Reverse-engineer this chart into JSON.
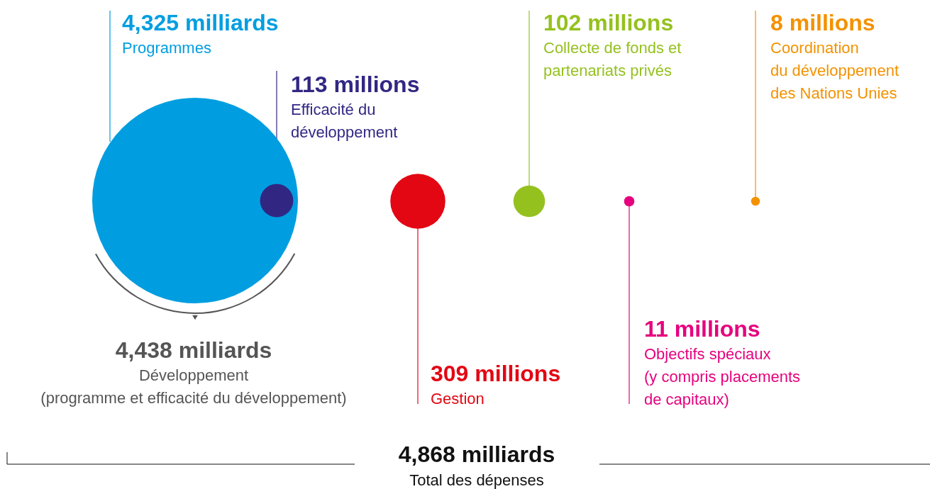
{
  "chart_data": {
    "type": "other",
    "categories": [
      "Programmes",
      "Efficacité du\ndéveloppement",
      "Gestion",
      "Collecte de fonds et\npartenariats privés",
      "Objectifs spéciaux\n(y compris placements\nde capitaux)",
      "Coordination\ndu développement\ndes Nations Unies"
    ],
    "values": [
      4325,
      113,
      309,
      102,
      11,
      8
    ],
    "value_labels": [
      "4,325 milliards",
      "113 millions",
      "309 millions",
      "102 millions",
      "11 millions",
      "8 millions"
    ],
    "colors": [
      "#009ee0",
      "#312783",
      "#e30613",
      "#95c11f",
      "#e6007e",
      "#f39200"
    ],
    "annotations": [
      "4,438 milliards",
      "Développement\n(programme et efficacité du développement)",
      "4,868 milliards",
      "Total des dépenses"
    ]
  }
}
